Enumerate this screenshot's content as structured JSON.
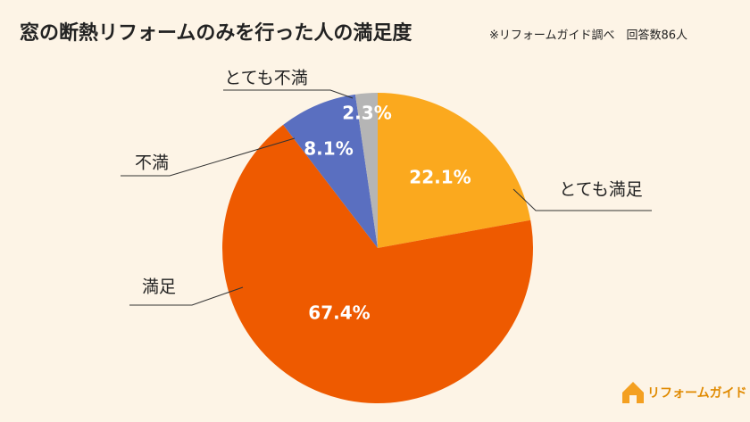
{
  "chart_data": {
    "type": "pie",
    "title": "窓の断熱リフォームのみを行った人の満足度",
    "subtitle": "※リフォームガイド調べ　回答数86人",
    "categories": [
      "とても満足",
      "満足",
      "不満",
      "とても不満"
    ],
    "values": [
      22.1,
      67.4,
      8.1,
      2.3
    ],
    "value_labels": [
      "22.1%",
      "67.4%",
      "8.1%",
      "2.3%"
    ],
    "colors": [
      "#fba91e",
      "#ee5a00",
      "#5a6fc0",
      "#b5b5b5"
    ]
  },
  "logo": "リフォームガイド"
}
